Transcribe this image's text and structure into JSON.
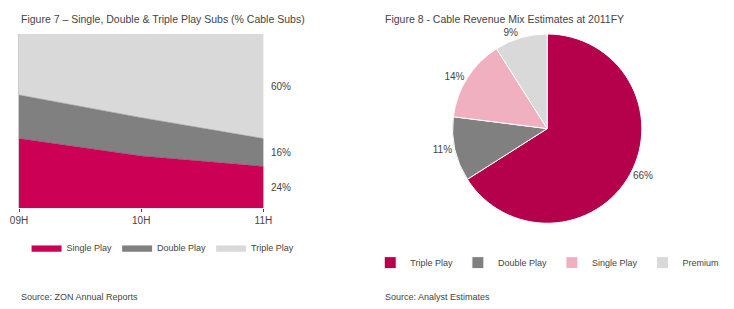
{
  "chart_data": [
    {
      "type": "area",
      "title": "Figure 7 – Single, Double & Triple Play Subs (% Cable Subs)",
      "categories": [
        "09H",
        "10H",
        "11H"
      ],
      "series": [
        {
          "name": "Single Play",
          "color": "#cc0055",
          "values": [
            0.4,
            0.3,
            0.24
          ],
          "value_labels": [
            null,
            null,
            "24%"
          ]
        },
        {
          "name": "Double Play",
          "color": "#808080",
          "values": [
            0.25,
            0.22,
            0.16
          ],
          "value_labels": [
            null,
            null,
            "16%"
          ]
        },
        {
          "name": "Triple Play",
          "color": "#d9d9d9",
          "values": [
            0.35,
            0.48,
            0.6
          ],
          "value_labels": [
            null,
            null,
            "60%"
          ]
        }
      ],
      "stacked": true,
      "ylim": [
        0,
        1
      ],
      "yticks": [],
      "tick_labels": "x",
      "grid": false,
      "legend": "bottom",
      "data_labels": true,
      "annotations": [
        "Source: ZON Annual Reports"
      ]
    },
    {
      "type": "pie",
      "title": "Figure 8 - Cable Revenue Mix Estimates at 2011FY",
      "categories": [
        "Triple Play",
        "Double Play",
        "Single Play",
        "Premium"
      ],
      "values": [
        66,
        11,
        14,
        9
      ],
      "colors": [
        "#b5004b",
        "#808080",
        "#f0b0c0",
        "#d9d9d9"
      ],
      "value_labels": [
        "66%",
        "11%",
        "14%",
        "9%"
      ],
      "data_labels": true,
      "legend": "bottom",
      "annotations": [
        "Source: Analyst Estimates"
      ]
    }
  ]
}
